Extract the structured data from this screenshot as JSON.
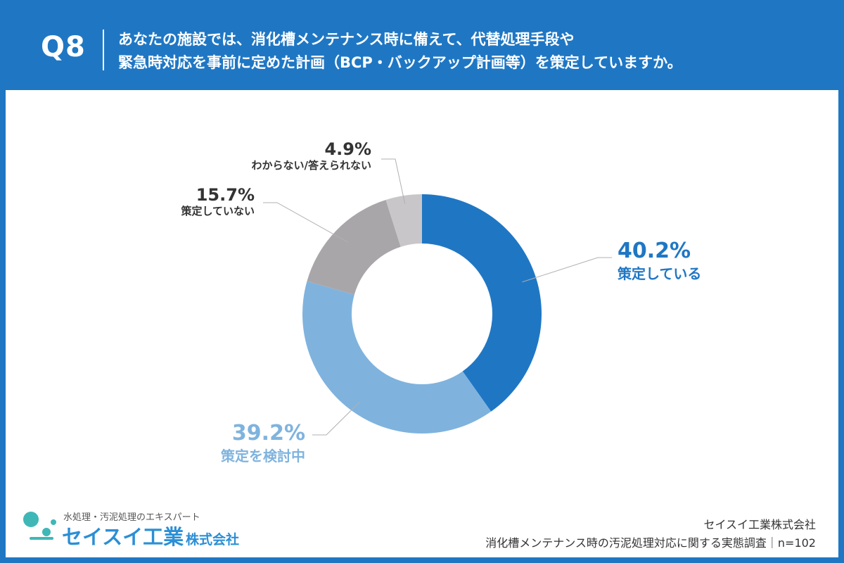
{
  "header": {
    "qnum": "Q8",
    "question_line1": "あなたの施設では、消化槽メンテナンス時に備えて、代替処理手段や",
    "question_line2": "緊急時対応を事前に定めた計画（BCP・バックアップ計画等）を策定していますか。"
  },
  "colors": {
    "frame": "#1f77c4",
    "accent_dark": "#1f77c4",
    "accent_light": "#7fb3de",
    "gray_mid": "#a9a6aa",
    "gray_light": "#c9c6c9"
  },
  "chart_data": {
    "type": "pie",
    "style": "donut",
    "categories": [
      "策定している",
      "策定を検討中",
      "策定していない",
      "わからない/答えられない"
    ],
    "values": [
      40.2,
      39.2,
      15.7,
      4.9
    ],
    "value_labels": [
      "40.2%",
      "39.2%",
      "15.7%",
      "4.9%"
    ],
    "colors": [
      "#1f77c4",
      "#7fb3de",
      "#a9a6aa",
      "#c9c6c9"
    ],
    "label_colors": [
      "#1f77c4",
      "#7fb3de",
      "#333333",
      "#333333"
    ],
    "title": "",
    "legend": "none"
  },
  "footer": {
    "logo_tagline": "水処理・汚泥処理のエキスパート",
    "logo_name": "セイスイ工業",
    "logo_corp": "株式会社",
    "company": "セイスイ工業株式会社",
    "survey": "消化槽メンテナンス時の汚泥処理対応に関する実態調査｜n=102"
  }
}
